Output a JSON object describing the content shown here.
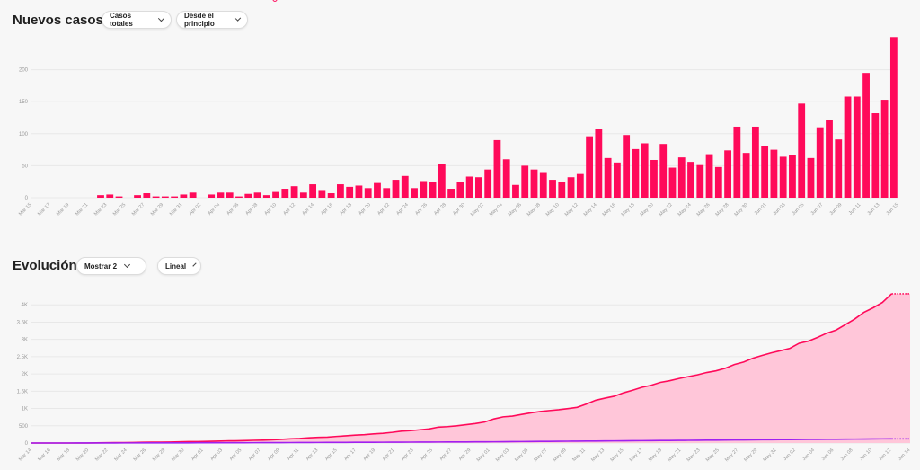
{
  "section1": {
    "title": "Nuevos casos",
    "dropdown1": "Casos totales",
    "dropdown2": "Desde el principio"
  },
  "section2": {
    "title": "Evolución",
    "dropdown1": "Mostrar 2",
    "dropdown2": "Lineal"
  },
  "colors": {
    "accent": "#ff0a5a",
    "fill": "#ffc6d9",
    "secondary": "#a020f0",
    "grid": "#e8e8e8"
  },
  "chart_data": [
    {
      "type": "bar",
      "title": "Nuevos casos",
      "ylim": [
        0,
        250
      ],
      "yticks": [
        0,
        50,
        100,
        150,
        200
      ],
      "grid": true,
      "x_tick_labels": [
        "Mar 15",
        "Mar 17",
        "Mar 19",
        "Mar 21",
        "Mar 23",
        "Mar 25",
        "Mar 27",
        "Mar 29",
        "Mar 31",
        "Apr 02",
        "Apr 04",
        "Apr 06",
        "Apr 08",
        "Apr 10",
        "Apr 12",
        "Apr 14",
        "Apr 16",
        "Apr 18",
        "Apr 20",
        "Apr 22",
        "Apr 24",
        "Apr 26",
        "Apr 28",
        "Apr 30",
        "May 02",
        "May 04",
        "May 06",
        "May 08",
        "May 10",
        "May 12",
        "May 14",
        "May 16",
        "May 18",
        "May 20",
        "May 22",
        "May 24",
        "May 26",
        "May 28",
        "May 30",
        "Jun 01",
        "Jun 03",
        "Jun 05",
        "Jun 07",
        "Jun 09",
        "Jun 11",
        "Jun 13",
        "Jun 15"
      ],
      "values": [
        0,
        0,
        0,
        0,
        0,
        0,
        0,
        4,
        5,
        2,
        0,
        4,
        7,
        2,
        2,
        2,
        5,
        8,
        0,
        5,
        8,
        8,
        2,
        6,
        8,
        4,
        9,
        14,
        18,
        8,
        21,
        12,
        7,
        21,
        17,
        19,
        15,
        23,
        15,
        28,
        34,
        15,
        26,
        25,
        52,
        14,
        24,
        33,
        32,
        44,
        90,
        60,
        20,
        50,
        44,
        40,
        28,
        24,
        32,
        37,
        96,
        108,
        62,
        55,
        98,
        76,
        85,
        59,
        84,
        47,
        63,
        56,
        51,
        68,
        48,
        74,
        111,
        70,
        111,
        81,
        75,
        64,
        66,
        147,
        62,
        110,
        121,
        91,
        158,
        158,
        195,
        132,
        153,
        251
      ]
    },
    {
      "type": "area",
      "title": "Evolución",
      "ylim": [
        0,
        4500
      ],
      "yticks": [
        0,
        500,
        1000,
        1500,
        2000,
        2500,
        3000,
        3500,
        4000
      ],
      "ytick_labels": [
        "0",
        "500",
        "1K",
        "1.5K",
        "2K",
        "2.5K",
        "3K",
        "3.5K",
        "4K"
      ],
      "grid": true,
      "x_tick_labels": [
        "Mar 14",
        "Mar 16",
        "Mar 18",
        "Mar 20",
        "Mar 22",
        "Mar 24",
        "Mar 26",
        "Mar 28",
        "Mar 30",
        "Apr 01",
        "Apr 03",
        "Apr 05",
        "Apr 07",
        "Apr 09",
        "Apr 11",
        "Apr 13",
        "Apr 15",
        "Apr 17",
        "Apr 19",
        "Apr 21",
        "Apr 23",
        "Apr 25",
        "Apr 27",
        "Apr 29",
        "May 01",
        "May 03",
        "May 05",
        "May 07",
        "May 09",
        "May 11",
        "May 13",
        "May 15",
        "May 17",
        "May 19",
        "May 21",
        "May 23",
        "May 25",
        "May 27",
        "May 29",
        "May 31",
        "Jun 02",
        "Jun 04",
        "Jun 06",
        "Jun 08",
        "Jun 10",
        "Jun 12",
        "Jun 14"
      ],
      "series": [
        {
          "color": "#ff0a5a",
          "values": [
            0,
            0,
            0,
            0,
            0,
            0,
            0,
            4,
            9,
            11,
            11,
            15,
            22,
            24,
            26,
            28,
            33,
            41,
            41,
            46,
            54,
            62,
            64,
            70,
            78,
            82,
            91,
            105,
            123,
            131,
            152,
            164,
            171,
            192,
            209,
            228,
            243,
            266,
            281,
            309,
            343,
            358,
            384,
            409,
            461,
            475,
            499,
            532,
            564,
            608,
            698,
            758,
            778,
            828,
            872,
            912,
            940,
            964,
            996,
            1033,
            1129,
            1237,
            1299,
            1354,
            1452,
            1528,
            1613,
            1672,
            1756,
            1803,
            1866,
            1922,
            1973,
            2041,
            2089,
            2163,
            2274,
            2344,
            2455,
            2536,
            2611,
            2675,
            2741,
            2888,
            2950,
            3060,
            3181,
            3272,
            3430,
            3588,
            3783,
            3915,
            4068,
            4319,
            4319,
            4319
          ]
        },
        {
          "color": "#a020f0",
          "values": [
            0,
            0,
            0,
            0,
            0,
            1,
            1,
            1,
            2,
            2,
            3,
            3,
            4,
            4,
            5,
            5,
            6,
            6,
            7,
            7,
            8,
            8,
            9,
            9,
            10,
            11,
            11,
            12,
            13,
            14,
            15,
            16,
            17,
            18,
            19,
            20,
            21,
            22,
            23,
            24,
            25,
            26,
            27,
            28,
            29,
            30,
            31,
            32,
            33,
            34,
            36,
            38,
            40,
            42,
            44,
            46,
            48,
            50,
            52,
            54,
            56,
            58,
            60,
            62,
            64,
            66,
            68,
            70,
            72,
            74,
            76,
            78,
            80,
            82,
            84,
            86,
            88,
            90,
            92,
            94,
            96,
            98,
            100,
            102,
            104,
            106,
            108,
            110,
            112,
            114,
            116,
            118,
            120,
            122,
            122,
            122
          ]
        }
      ]
    }
  ]
}
